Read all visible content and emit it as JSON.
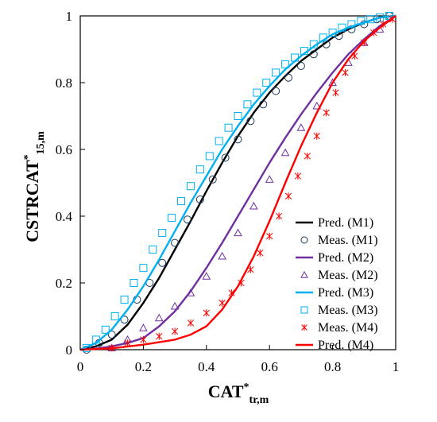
{
  "chart_data": {
    "type": "line",
    "title": "",
    "xlabel": {
      "main": "CAT",
      "sup": "*",
      "sub": "tr,m"
    },
    "ylabel": {
      "main": "CSTRCAT",
      "sup": "*",
      "sub": "15,m"
    },
    "xlim": [
      0,
      1
    ],
    "ylim": [
      0,
      1
    ],
    "xticks": [
      "0",
      "0.2",
      "0.4",
      "0.6",
      "0.8",
      "1"
    ],
    "yticks": [
      "0",
      "0.2",
      "0.4",
      "0.6",
      "0.8",
      "1"
    ],
    "grid": false,
    "legend_position": "bottom-right",
    "series": [
      {
        "name": "Pred.  (M1)",
        "kind": "line",
        "color": "#000000",
        "x": [
          0,
          0.05,
          0.1,
          0.15,
          0.2,
          0.25,
          0.3,
          0.35,
          0.4,
          0.45,
          0.5,
          0.55,
          0.6,
          0.65,
          0.7,
          0.75,
          0.8,
          0.85,
          0.9,
          0.95,
          1.0
        ],
        "y": [
          0,
          0.01,
          0.03,
          0.075,
          0.14,
          0.215,
          0.3,
          0.385,
          0.475,
          0.56,
          0.64,
          0.71,
          0.77,
          0.82,
          0.865,
          0.9,
          0.935,
          0.96,
          0.98,
          0.995,
          1.0
        ]
      },
      {
        "name": "Meas.  (M1)",
        "kind": "marker",
        "marker": "circle",
        "color": "#1a3a5a",
        "x": [
          0.02,
          0.06,
          0.1,
          0.14,
          0.18,
          0.22,
          0.26,
          0.3,
          0.34,
          0.38,
          0.42,
          0.46,
          0.5,
          0.54,
          0.58,
          0.62,
          0.66,
          0.7,
          0.74,
          0.78,
          0.82,
          0.86,
          0.9,
          0.94,
          0.98
        ],
        "y": [
          0,
          0.02,
          0.045,
          0.09,
          0.15,
          0.2,
          0.26,
          0.32,
          0.39,
          0.45,
          0.51,
          0.575,
          0.63,
          0.685,
          0.735,
          0.775,
          0.815,
          0.85,
          0.885,
          0.915,
          0.94,
          0.96,
          0.975,
          0.99,
          1.0
        ]
      },
      {
        "name": "Pred.  (M2)",
        "kind": "line",
        "color": "#7030a0",
        "x": [
          0,
          0.05,
          0.1,
          0.15,
          0.2,
          0.25,
          0.3,
          0.35,
          0.4,
          0.45,
          0.5,
          0.55,
          0.6,
          0.65,
          0.7,
          0.75,
          0.8,
          0.85,
          0.9,
          0.95,
          1.0
        ],
        "y": [
          0,
          0.003,
          0.01,
          0.02,
          0.035,
          0.07,
          0.115,
          0.175,
          0.245,
          0.32,
          0.4,
          0.48,
          0.56,
          0.635,
          0.705,
          0.77,
          0.83,
          0.885,
          0.93,
          0.97,
          1.0
        ]
      },
      {
        "name": "Meas.  (M2)",
        "kind": "marker",
        "marker": "triangle",
        "color": "#7030a0",
        "x": [
          0.1,
          0.15,
          0.2,
          0.25,
          0.3,
          0.35,
          0.4,
          0.45,
          0.5,
          0.55,
          0.6,
          0.65,
          0.7,
          0.75,
          0.8,
          0.85,
          0.9,
          0.95
        ],
        "y": [
          0.005,
          0.03,
          0.065,
          0.095,
          0.13,
          0.17,
          0.22,
          0.28,
          0.35,
          0.43,
          0.51,
          0.59,
          0.665,
          0.73,
          0.8,
          0.86,
          0.92,
          0.96
        ]
      },
      {
        "name": "Pred.  (M3)",
        "kind": "line",
        "color": "#00b0f0",
        "x": [
          0,
          0.05,
          0.1,
          0.15,
          0.2,
          0.25,
          0.3,
          0.35,
          0.4,
          0.45,
          0.5,
          0.55,
          0.6,
          0.65,
          0.7,
          0.75,
          0.8,
          0.85,
          0.9,
          0.95,
          1.0
        ],
        "y": [
          0,
          0.02,
          0.06,
          0.12,
          0.19,
          0.27,
          0.355,
          0.44,
          0.52,
          0.6,
          0.67,
          0.735,
          0.79,
          0.84,
          0.88,
          0.915,
          0.945,
          0.965,
          0.98,
          0.995,
          1.0
        ]
      },
      {
        "name": "Meas.  (M3)",
        "kind": "marker",
        "marker": "square",
        "color": "#00b0f0",
        "x": [
          0.02,
          0.05,
          0.08,
          0.11,
          0.14,
          0.17,
          0.2,
          0.23,
          0.26,
          0.29,
          0.32,
          0.35,
          0.38,
          0.41,
          0.44,
          0.47,
          0.5,
          0.53,
          0.56,
          0.59,
          0.62,
          0.65,
          0.68,
          0.71,
          0.74,
          0.77,
          0.8,
          0.83,
          0.86,
          0.89,
          0.92,
          0.95,
          0.98
        ],
        "y": [
          0.005,
          0.03,
          0.06,
          0.1,
          0.15,
          0.2,
          0.245,
          0.3,
          0.35,
          0.395,
          0.445,
          0.49,
          0.54,
          0.58,
          0.625,
          0.665,
          0.7,
          0.735,
          0.77,
          0.8,
          0.83,
          0.855,
          0.875,
          0.895,
          0.915,
          0.935,
          0.95,
          0.965,
          0.975,
          0.985,
          0.99,
          0.995,
          1.0
        ]
      },
      {
        "name": "Meas.  (M4)",
        "kind": "marker",
        "marker": "star",
        "color": "#ff0000",
        "x": [
          0.1,
          0.15,
          0.2,
          0.25,
          0.3,
          0.35,
          0.4,
          0.45,
          0.48,
          0.51,
          0.54,
          0.57,
          0.6,
          0.63,
          0.66,
          0.69,
          0.72,
          0.75,
          0.78,
          0.81,
          0.84,
          0.87,
          0.9,
          0.93,
          0.96,
          0.99
        ],
        "y": [
          0.005,
          0.02,
          0.03,
          0.04,
          0.055,
          0.08,
          0.11,
          0.14,
          0.17,
          0.2,
          0.24,
          0.29,
          0.34,
          0.4,
          0.46,
          0.52,
          0.58,
          0.64,
          0.71,
          0.77,
          0.83,
          0.88,
          0.92,
          0.95,
          0.975,
          0.99
        ]
      },
      {
        "name": "Pred.  (M4)",
        "kind": "line",
        "color": "#ff0000",
        "x": [
          0,
          0.1,
          0.2,
          0.3,
          0.35,
          0.4,
          0.45,
          0.5,
          0.55,
          0.6,
          0.65,
          0.7,
          0.75,
          0.8,
          0.85,
          0.9,
          0.95,
          1.0
        ],
        "y": [
          0,
          0.004,
          0.015,
          0.03,
          0.045,
          0.07,
          0.12,
          0.19,
          0.28,
          0.385,
          0.5,
          0.61,
          0.71,
          0.8,
          0.87,
          0.925,
          0.965,
          1.0
        ]
      }
    ]
  }
}
